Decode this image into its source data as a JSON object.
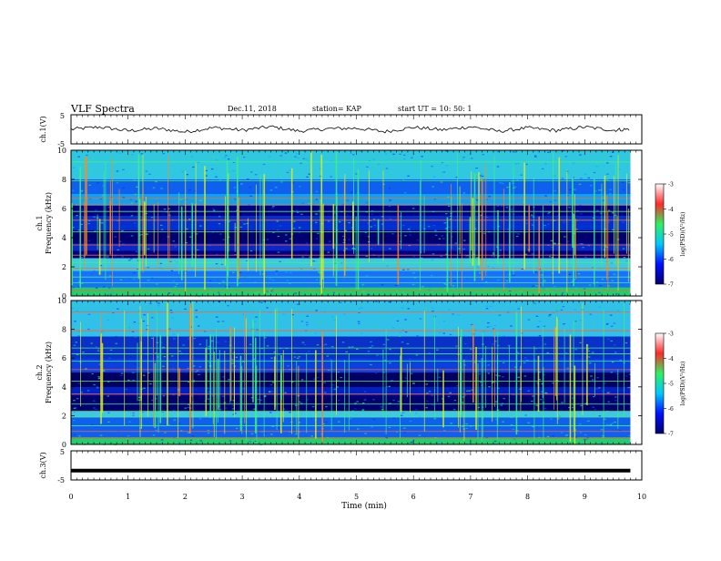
{
  "header": {
    "title": "VLF Spectra",
    "date": "Dec.11, 2018",
    "station": "station= KAP",
    "start": "start  UT =   10: 50: 1"
  },
  "colors": {
    "spectrum_low": "#000070",
    "spectrum_mid": "#3aa8e8",
    "spectrum_high": "#28e060",
    "spectrum_peak": "#ff2020",
    "line": "#000000"
  },
  "chart_data": [
    {
      "id": "ch1-waveform",
      "type": "line",
      "ylabel": "ch.1(V)",
      "ylim": [
        -5,
        5
      ],
      "yticks": [
        "5",
        "-5"
      ],
      "xlim": [
        0,
        10
      ],
      "note_series": "noisy waveform, approx. -1.5 V to 1.5 V around 0, data ends near 9.8 min",
      "x": [
        0,
        0.5,
        1,
        1.5,
        2,
        2.5,
        3,
        3.5,
        4,
        4.5,
        5,
        5.5,
        6,
        6.5,
        7,
        7.5,
        8,
        8.5,
        9,
        9.5,
        9.8
      ],
      "values": [
        0,
        0.8,
        -0.5,
        0.3,
        -0.9,
        0.6,
        -0.3,
        0.9,
        -0.6,
        0.2,
        0.4,
        -0.8,
        0.7,
        -0.2,
        0.9,
        -0.7,
        0.5,
        -0.4,
        0.8,
        -0.3,
        0.1
      ]
    },
    {
      "id": "ch1-spectrogram",
      "type": "heatmap",
      "ylabel_top": "ch.1",
      "ylabel": "Frequency (kHz)",
      "ylim": [
        0,
        10
      ],
      "yticks": [
        "0",
        "2",
        "4",
        "6",
        "8",
        "10"
      ],
      "xlim": [
        0,
        10
      ],
      "colorbar": {
        "label": "log(PSD)(V²/Hz)",
        "range": [
          -7,
          -3
        ],
        "ticks": [
          "-3",
          "-4",
          "-5",
          "-6",
          "-7"
        ]
      }
    },
    {
      "id": "ch2-spectrogram",
      "type": "heatmap",
      "ylabel_top": "ch.2",
      "ylabel": "Frequency (kHz)",
      "ylim": [
        0,
        10
      ],
      "yticks": [
        "0",
        "2",
        "4",
        "6",
        "8",
        "10"
      ],
      "xlim": [
        0,
        10
      ],
      "colorbar": {
        "label": "log(PSD)(V²/Hz)",
        "range": [
          -7,
          -3
        ],
        "ticks": [
          "-3",
          "-4",
          "-5",
          "-6",
          "-7"
        ]
      }
    },
    {
      "id": "ch3-waveform",
      "type": "line",
      "ylabel": "ch.3(V)",
      "ylim": [
        -5,
        5
      ],
      "yticks": [
        "5",
        "-5"
      ],
      "xlim": [
        0,
        10
      ],
      "x": [
        0,
        9.8
      ],
      "values": [
        -1.8,
        -1.8
      ]
    }
  ],
  "xaxis": {
    "label": "Time (min)",
    "ticks": [
      "0",
      "1",
      "2",
      "3",
      "4",
      "5",
      "6",
      "7",
      "8",
      "9",
      "10"
    ]
  }
}
